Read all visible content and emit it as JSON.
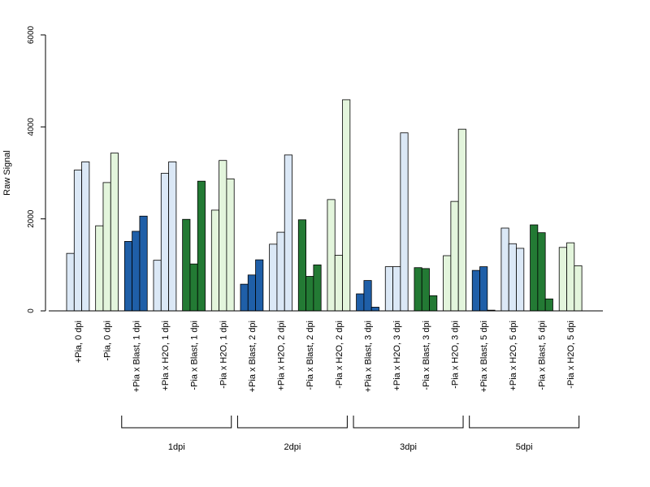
{
  "chart_data": {
    "type": "bar",
    "ylabel": "Raw Signal",
    "ylim": [
      0,
      6000
    ],
    "yticks": [
      0,
      2000,
      4000,
      6000
    ],
    "colors": {
      "light_blue": "#dbe8f6",
      "light_green": "#e3f5dc",
      "dark_blue": "#1f5fa8",
      "dark_green": "#237a34",
      "outline": "#000000"
    },
    "categories": [
      {
        "label": "+Pia, 0 dpi",
        "fill": "light_blue",
        "values": [
          1250,
          3060,
          3240
        ]
      },
      {
        "label": "-Pia, 0 dpi",
        "fill": "light_green",
        "values": [
          1850,
          2790,
          3430
        ]
      },
      {
        "label": "+Pia x Blast, 1 dpi",
        "fill": "dark_blue",
        "values": [
          1510,
          1730,
          2060
        ]
      },
      {
        "label": "+Pia x H2O, 1 dpi",
        "fill": "light_blue",
        "values": [
          1100,
          2990,
          3240
        ]
      },
      {
        "label": "-Pia x Blast, 1 dpi",
        "fill": "dark_green",
        "values": [
          1990,
          1020,
          2820
        ]
      },
      {
        "label": "-Pia x H2O, 1 dpi",
        "fill": "light_green",
        "values": [
          2190,
          3270,
          2870
        ]
      },
      {
        "label": "+Pia x Blast, 2 dpi",
        "fill": "dark_blue",
        "values": [
          580,
          780,
          1110
        ]
      },
      {
        "label": "+Pia x H2O, 2 dpi",
        "fill": "light_blue",
        "values": [
          1450,
          1710,
          3390
        ]
      },
      {
        "label": "-Pia x Blast, 2 dpi",
        "fill": "dark_green",
        "values": [
          1980,
          750,
          1000
        ]
      },
      {
        "label": "-Pia x H2O, 2 dpi",
        "fill": "light_green",
        "values": [
          2420,
          1210,
          4590
        ]
      },
      {
        "label": "+Pia x Blast, 3 dpi",
        "fill": "dark_blue",
        "values": [
          370,
          660,
          80
        ]
      },
      {
        "label": "+Pia x H2O, 3 dpi",
        "fill": "light_blue",
        "values": [
          960,
          960,
          3870
        ]
      },
      {
        "label": "-Pia x Blast, 3 dpi",
        "fill": "dark_green",
        "values": [
          940,
          920,
          330
        ]
      },
      {
        "label": "-Pia x H2O, 3 dpi",
        "fill": "light_green",
        "values": [
          1200,
          2380,
          3950
        ]
      },
      {
        "label": "+Pia x Blast, 5 dpi",
        "fill": "dark_blue",
        "values": [
          880,
          960,
          15
        ]
      },
      {
        "label": "+Pia x H2O, 5 dpi",
        "fill": "light_blue",
        "values": [
          1800,
          1460,
          1360
        ]
      },
      {
        "label": "-Pia x Blast, 5 dpi",
        "fill": "dark_green",
        "values": [
          1870,
          1700,
          260
        ]
      },
      {
        "label": "-Pia x H2O, 5 dpi",
        "fill": "light_green",
        "values": [
          1380,
          1480,
          980
        ]
      }
    ],
    "groups": [
      {
        "label": "1dpi",
        "from": 2,
        "to": 5
      },
      {
        "label": "2dpi",
        "from": 6,
        "to": 9
      },
      {
        "label": "3dpi",
        "from": 10,
        "to": 13
      },
      {
        "label": "5dpi",
        "from": 14,
        "to": 17
      }
    ]
  }
}
